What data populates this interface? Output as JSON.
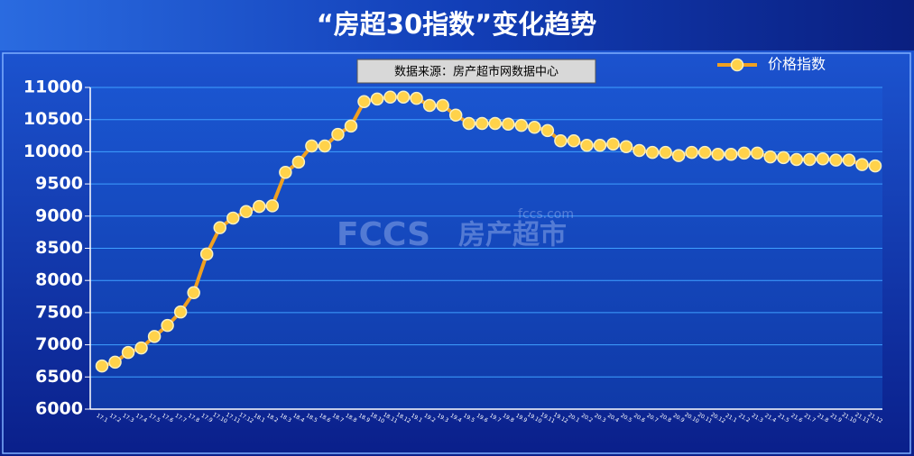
{
  "chart_data": {
    "type": "line",
    "title": "“房超30指数”变化趋势",
    "source": "数据来源：房产超市网数据中心",
    "watermark": [
      "fccs.com",
      "FCCS",
      "房产超市"
    ],
    "categories": [
      "17.1",
      "17.2",
      "17.3",
      "17.4",
      "17.5",
      "17.6",
      "17.7",
      "17.8",
      "17.9",
      "17.10",
      "17.11",
      "17.12",
      "18.1",
      "18.2",
      "18.3",
      "18.4",
      "18.5",
      "18.6",
      "18.7",
      "18.8",
      "18.9",
      "18.10",
      "18.11",
      "18.12",
      "19.1",
      "19.2",
      "19.3",
      "19.4",
      "19.5",
      "19.6",
      "19.7",
      "19.8",
      "19.9",
      "19.10",
      "19.11",
      "19.12",
      "20.1",
      "20.2",
      "20.3",
      "20.4",
      "20.5",
      "20.6",
      "20.7",
      "20.8",
      "20.9",
      "20.10",
      "20.11",
      "20.12",
      "21.1",
      "21.2",
      "21.3",
      "21.4",
      "21.5",
      "21.6",
      "21.7",
      "21.8",
      "21.9",
      "21.10",
      "21.11",
      "21.12"
    ],
    "series": [
      {
        "name": "价格指数",
        "color": "#f0a020",
        "values": [
          6670,
          6730,
          6880,
          6950,
          7130,
          7300,
          7510,
          7810,
          8410,
          8820,
          8970,
          9070,
          9150,
          9160,
          9680,
          9840,
          10090,
          10090,
          10270,
          10400,
          10780,
          10820,
          10850,
          10850,
          10830,
          10720,
          10720,
          10570,
          10440,
          10440,
          10440,
          10430,
          10410,
          10380,
          10330,
          10170,
          10170,
          10100,
          10100,
          10120,
          10080,
          10020,
          9990,
          9990,
          9940,
          9990,
          9990,
          9960,
          9960,
          9980,
          9980,
          9920,
          9910,
          9880,
          9880,
          9890,
          9870,
          9870,
          9800,
          9780
        ]
      }
    ],
    "ylim": [
      6000,
      11000
    ],
    "yticks": [
      6000,
      6500,
      7000,
      7500,
      8000,
      8500,
      9000,
      9500,
      10000,
      10500,
      11000
    ],
    "grid": true,
    "legend": "top-right"
  }
}
